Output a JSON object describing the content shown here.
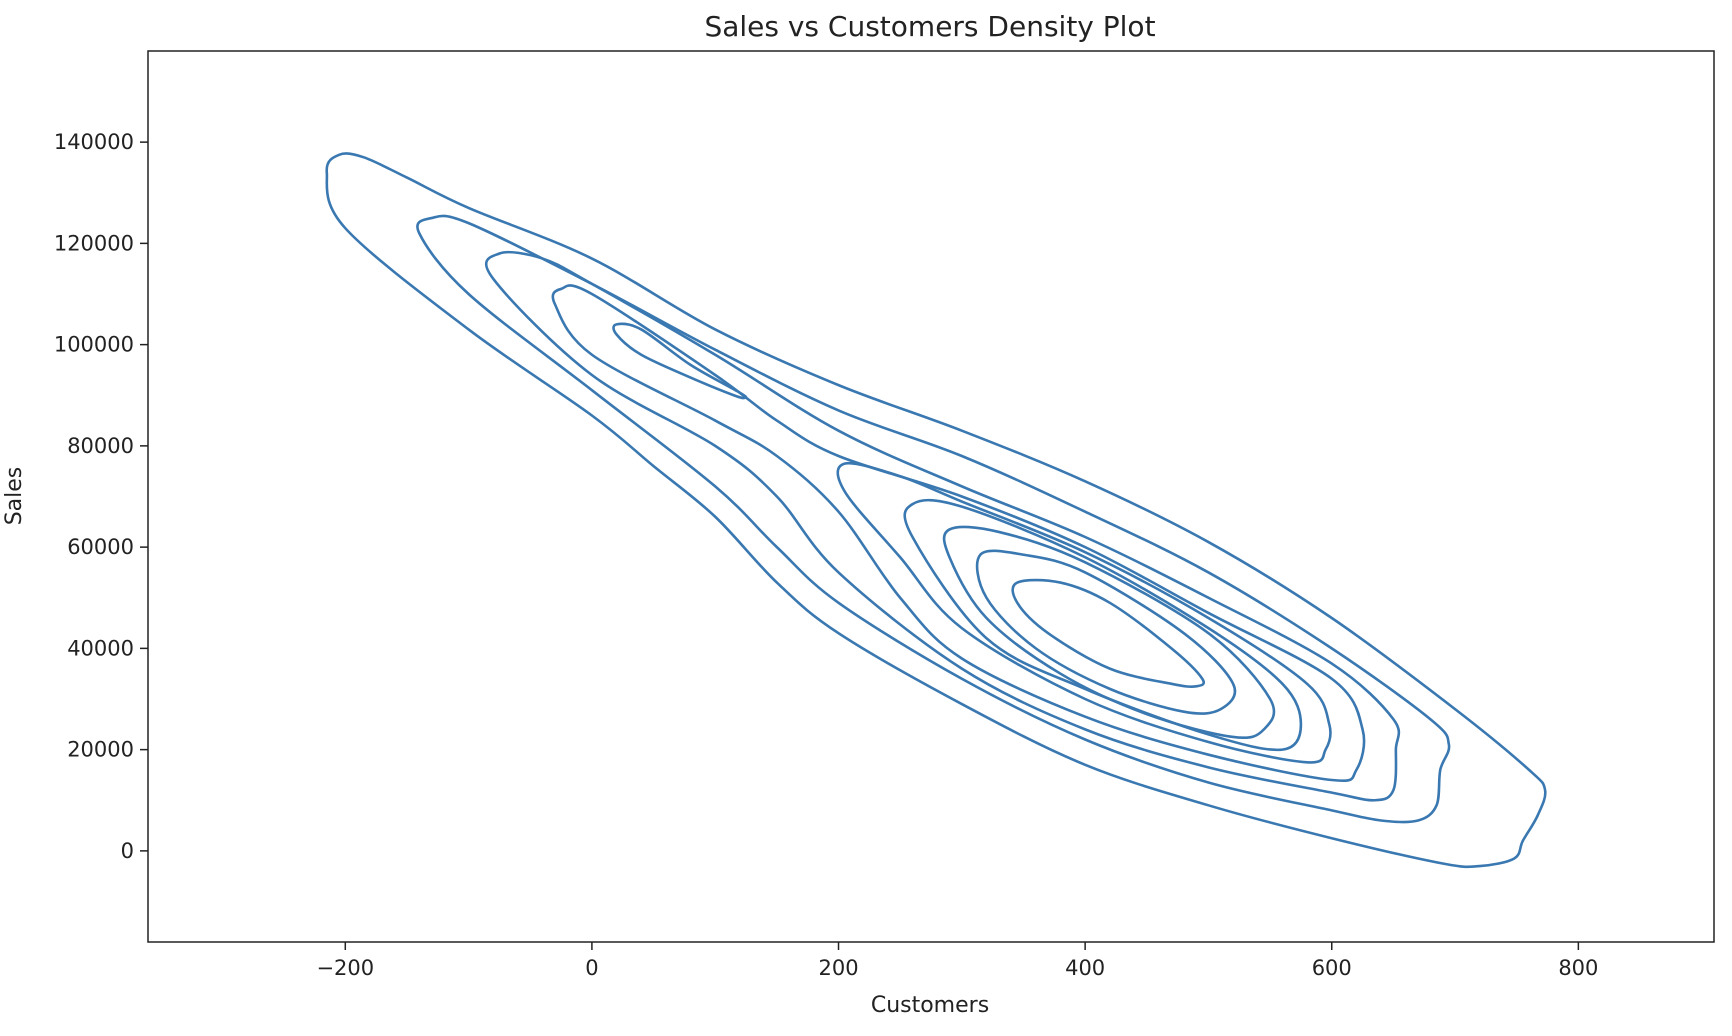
{
  "chart_data": {
    "type": "contour",
    "title": "Sales vs Customers Density Plot",
    "xlabel": "Customers",
    "ylabel": "Sales",
    "xlim": [
      -360,
      910
    ],
    "ylim": [
      -18000,
      158000
    ],
    "x_ticks": [
      -200,
      0,
      200,
      400,
      600,
      800
    ],
    "x_tick_labels": [
      "−200",
      "0",
      "200",
      "400",
      "600",
      "800"
    ],
    "y_ticks": [
      0,
      20000,
      40000,
      60000,
      80000,
      100000,
      120000,
      140000
    ],
    "y_tick_labels": [
      "0",
      "20000",
      "40000",
      "60000",
      "80000",
      "100000",
      "120000",
      "140000"
    ],
    "grid": false,
    "line_color": "#3a78b1",
    "contour_levels": [
      {
        "name": "level-1",
        "closed": true,
        "points": [
          [
            -205,
            137500
          ],
          [
            -185,
            137000
          ],
          [
            -150,
            133000
          ],
          [
            -100,
            127000
          ],
          [
            0,
            117000
          ],
          [
            100,
            103000
          ],
          [
            200,
            92000
          ],
          [
            300,
            83000
          ],
          [
            400,
            73000
          ],
          [
            500,
            61000
          ],
          [
            600,
            46000
          ],
          [
            700,
            28000
          ],
          [
            760,
            16000
          ],
          [
            773,
            12000
          ],
          [
            767,
            7000
          ],
          [
            755,
            2000
          ],
          [
            748,
            -1500
          ],
          [
            720,
            -3000
          ],
          [
            690,
            -2500
          ],
          [
            600,
            2500
          ],
          [
            500,
            9000
          ],
          [
            400,
            17000
          ],
          [
            300,
            29000
          ],
          [
            200,
            43000
          ],
          [
            150,
            53000
          ],
          [
            100,
            66000
          ],
          [
            50,
            76000
          ],
          [
            0,
            86000
          ],
          [
            -100,
            103000
          ],
          [
            -200,
            123000
          ],
          [
            -215,
            134000
          ],
          [
            -205,
            137500
          ]
        ]
      },
      {
        "name": "level-2",
        "closed": true,
        "points": [
          [
            -130,
            125000
          ],
          [
            -100,
            124000
          ],
          [
            0,
            112000
          ],
          [
            100,
            99000
          ],
          [
            200,
            87000
          ],
          [
            300,
            78000
          ],
          [
            400,
            67000
          ],
          [
            500,
            55000
          ],
          [
            600,
            40000
          ],
          [
            680,
            26000
          ],
          [
            695,
            21000
          ],
          [
            688,
            16000
          ],
          [
            685,
            9000
          ],
          [
            670,
            6000
          ],
          [
            640,
            6000
          ],
          [
            600,
            8000
          ],
          [
            500,
            13500
          ],
          [
            400,
            22000
          ],
          [
            300,
            34000
          ],
          [
            200,
            49000
          ],
          [
            150,
            60000
          ],
          [
            100,
            72000
          ],
          [
            0,
            91000
          ],
          [
            -100,
            110000
          ],
          [
            -140,
            122000
          ],
          [
            -130,
            125000
          ]
        ]
      },
      {
        "name": "level-3",
        "closed": true,
        "points": [
          [
            -75,
            118000
          ],
          [
            -40,
            117000
          ],
          [
            0,
            112000
          ],
          [
            100,
            98000
          ],
          [
            200,
            83000
          ],
          [
            300,
            72000
          ],
          [
            400,
            62000
          ],
          [
            500,
            50000
          ],
          [
            600,
            37000
          ],
          [
            650,
            26000
          ],
          [
            652,
            20000
          ],
          [
            650,
            12000
          ],
          [
            635,
            10000
          ],
          [
            600,
            11500
          ],
          [
            500,
            16500
          ],
          [
            400,
            24000
          ],
          [
            300,
            36000
          ],
          [
            200,
            55000
          ],
          [
            150,
            70000
          ],
          [
            100,
            80000
          ],
          [
            0,
            94000
          ],
          [
            -80,
            113000
          ],
          [
            -75,
            118000
          ]
        ]
      },
      {
        "name": "level-4",
        "closed": true,
        "points": [
          [
            -25,
            111000
          ],
          [
            0,
            110000
          ],
          [
            100,
            94000
          ],
          [
            150,
            85000
          ],
          [
            200,
            78000
          ],
          [
            300,
            70000
          ],
          [
            400,
            60000
          ],
          [
            500,
            47000
          ],
          [
            600,
            34000
          ],
          [
            625,
            24000
          ],
          [
            620,
            16000
          ],
          [
            600,
            14000
          ],
          [
            500,
            19000
          ],
          [
            400,
            26500
          ],
          [
            300,
            38000
          ],
          [
            250,
            50000
          ],
          [
            200,
            67000
          ],
          [
            150,
            78000
          ],
          [
            100,
            85000
          ],
          [
            0,
            98000
          ],
          [
            -30,
            108000
          ],
          [
            -25,
            111000
          ]
        ]
      },
      {
        "name": "level-5",
        "closed": true,
        "points": [
          [
            20,
            104000
          ],
          [
            40,
            103000
          ],
          [
            80,
            96000
          ],
          [
            120,
            90500
          ],
          [
            124,
            89500
          ],
          [
            115,
            90000
          ],
          [
            80,
            93500
          ],
          [
            40,
            98000
          ],
          [
            20,
            102000
          ],
          [
            20,
            104000
          ]
        ]
      },
      {
        "name": "level-6",
        "closed": true,
        "points": [
          [
            205,
            76500
          ],
          [
            250,
            74000
          ],
          [
            300,
            69000
          ],
          [
            400,
            59000
          ],
          [
            500,
            46000
          ],
          [
            580,
            33000
          ],
          [
            598,
            25000
          ],
          [
            595,
            20000
          ],
          [
            580,
            17500
          ],
          [
            500,
            21500
          ],
          [
            400,
            30000
          ],
          [
            300,
            44000
          ],
          [
            250,
            58000
          ],
          [
            205,
            71000
          ],
          [
            205,
            76500
          ]
        ]
      },
      {
        "name": "level-7",
        "closed": true,
        "points": [
          [
            260,
            68500
          ],
          [
            300,
            68000
          ],
          [
            400,
            58000
          ],
          [
            500,
            44000
          ],
          [
            560,
            33000
          ],
          [
            575,
            25000
          ],
          [
            560,
            20000
          ],
          [
            500,
            23000
          ],
          [
            400,
            32000
          ],
          [
            320,
            42000
          ],
          [
            260,
            62000
          ],
          [
            260,
            68500
          ]
        ]
      },
      {
        "name": "level-8",
        "closed": true,
        "points": [
          [
            290,
            63500
          ],
          [
            330,
            63000
          ],
          [
            400,
            57000
          ],
          [
            500,
            43000
          ],
          [
            550,
            30000
          ],
          [
            545,
            24000
          ],
          [
            520,
            22500
          ],
          [
            450,
            27000
          ],
          [
            380,
            35000
          ],
          [
            320,
            46000
          ],
          [
            290,
            58000
          ],
          [
            290,
            63500
          ]
        ]
      },
      {
        "name": "level-9",
        "closed": true,
        "points": [
          [
            315,
            58500
          ],
          [
            350,
            58500
          ],
          [
            400,
            55000
          ],
          [
            480,
            43000
          ],
          [
            520,
            33000
          ],
          [
            510,
            28000
          ],
          [
            480,
            27500
          ],
          [
            420,
            32000
          ],
          [
            360,
            40000
          ],
          [
            320,
            50000
          ],
          [
            315,
            58500
          ]
        ]
      },
      {
        "name": "level-10",
        "closed": true,
        "points": [
          [
            345,
            53000
          ],
          [
            380,
            53000
          ],
          [
            420,
            49000
          ],
          [
            470,
            40000
          ],
          [
            495,
            34000
          ],
          [
            490,
            32500
          ],
          [
            470,
            33000
          ],
          [
            420,
            36000
          ],
          [
            370,
            43000
          ],
          [
            345,
            49000
          ],
          [
            345,
            53000
          ]
        ]
      }
    ]
  }
}
